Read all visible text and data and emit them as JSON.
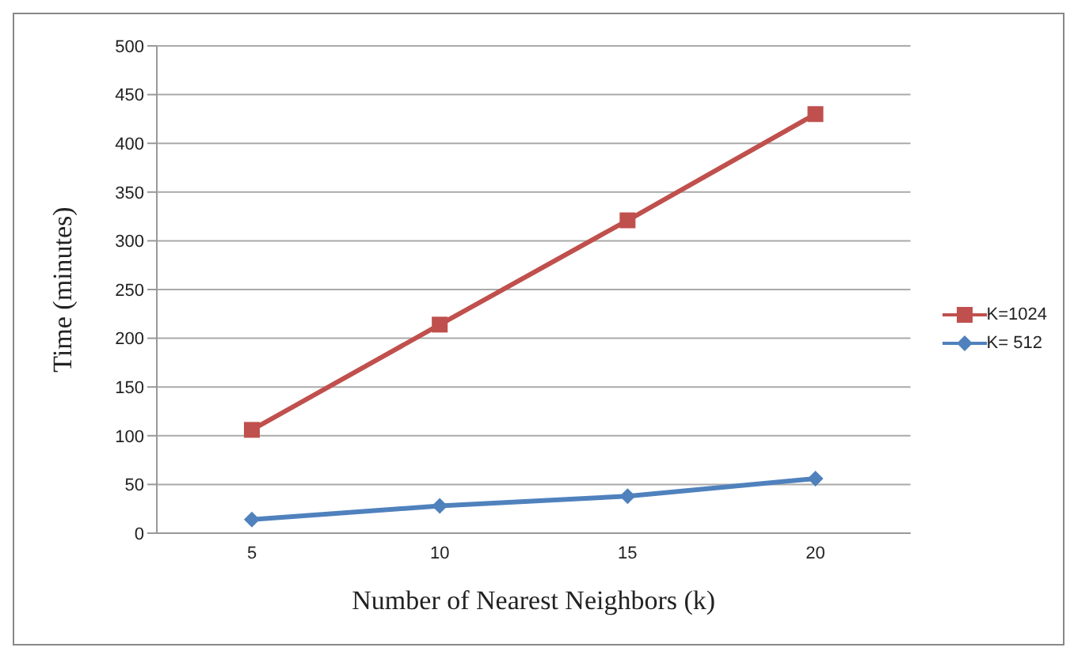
{
  "chart_data": {
    "type": "line",
    "xlabel": "Number of Nearest Neighbors (k)",
    "ylabel": "Time (minutes)",
    "categories": [
      "5",
      "10",
      "15",
      "20"
    ],
    "series": [
      {
        "name": "K=1024",
        "color": "#c0504d",
        "values": [
          106,
          214,
          321,
          430
        ],
        "marker": "square"
      },
      {
        "name": "K= 512",
        "color": "#4f81bd",
        "values": [
          14,
          28,
          38,
          56
        ],
        "marker": "diamond"
      }
    ],
    "ylim": [
      0,
      500
    ],
    "yticks": [
      0,
      50,
      100,
      150,
      200,
      250,
      300,
      350,
      400,
      450,
      500
    ],
    "grid": "y",
    "legend": "right"
  }
}
